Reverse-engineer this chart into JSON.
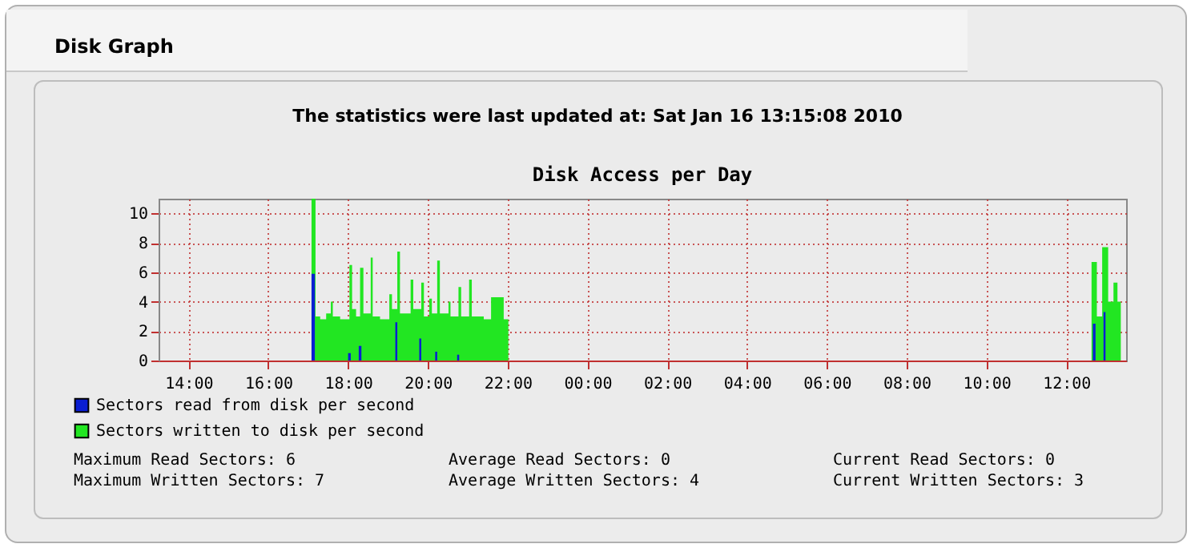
{
  "chart_data": {
    "type": "area",
    "title": "Disk Access per Day",
    "subtitle": "The statistics were last updated at: Sat Jan 16 13:15:08 2010",
    "annotations": [
      "Disk Graph",
      "Maximum Read Sectors: 6",
      "Average Read Sectors: 0",
      "Current Read Sectors: 0",
      "Maximum Written Sectors: 7",
      "Average Written Sectors: 4",
      "Current Written Sectors: 3"
    ],
    "series": [
      {
        "name": "Sectors read from disk per second",
        "color": "#0a1ed2",
        "x": [
          "2010-01-15T13:15",
          "2010-01-15T17:05",
          "2010-01-15T17:10",
          "2010-01-15T18:00",
          "2010-01-15T18:04",
          "2010-01-15T18:16",
          "2010-01-15T18:20",
          "2010-01-15T19:11",
          "2010-01-15T19:14",
          "2010-01-15T19:47",
          "2010-01-15T19:50",
          "2010-01-15T20:11",
          "2010-01-15T20:14",
          "2010-01-15T20:44",
          "2010-01-15T20:47",
          "2010-01-16T12:40",
          "2010-01-16T12:44",
          "2010-01-16T12:56",
          "2010-01-16T12:59",
          "2010-01-16T13:22"
        ],
        "values": [
          0,
          5.9,
          0,
          0.5,
          0,
          1.0,
          0,
          2.6,
          0,
          1.5,
          0,
          0.6,
          0,
          0.4,
          0,
          2.5,
          0,
          3.3,
          0,
          0
        ]
      },
      {
        "name": "Sectors written to disk per second",
        "color": "#22e622",
        "x": [
          "2010-01-15T13:15",
          "2010-01-15T17:05",
          "2010-01-15T17:11",
          "2010-01-15T17:18",
          "2010-01-15T17:27",
          "2010-01-15T17:34",
          "2010-01-15T17:37",
          "2010-01-15T17:48",
          "2010-01-15T18:02",
          "2010-01-15T18:06",
          "2010-01-15T18:12",
          "2010-01-15T18:18",
          "2010-01-15T18:23",
          "2010-01-15T18:34",
          "2010-01-15T18:37",
          "2010-01-15T18:48",
          "2010-01-15T19:02",
          "2010-01-15T19:06",
          "2010-01-15T19:14",
          "2010-01-15T19:18",
          "2010-01-15T19:34",
          "2010-01-15T19:38",
          "2010-01-15T19:50",
          "2010-01-15T19:54",
          "2010-01-15T20:02",
          "2010-01-15T20:06",
          "2010-01-15T20:14",
          "2010-01-15T20:18",
          "2010-01-15T20:31",
          "2010-01-15T20:34",
          "2010-01-15T20:46",
          "2010-01-15T20:50",
          "2010-01-15T21:02",
          "2010-01-15T21:06",
          "2010-01-15T21:24",
          "2010-01-15T21:35",
          "2010-01-15T21:54",
          "2010-01-15T22:01",
          "2010-01-16T12:38",
          "2010-01-16T12:46",
          "2010-01-16T12:54",
          "2010-01-16T13:03",
          "2010-01-16T13:11",
          "2010-01-16T13:17",
          "2010-01-16T13:22"
        ],
        "values": [
          0,
          11,
          3,
          2.8,
          3.2,
          4.0,
          3.0,
          2.8,
          6.5,
          3.5,
          3.0,
          6.3,
          3.2,
          7.0,
          3.0,
          2.8,
          4.5,
          3.5,
          7.4,
          3.2,
          5.5,
          3.5,
          5.3,
          3.0,
          4.2,
          3.2,
          6.8,
          3.2,
          4.0,
          3.0,
          5.0,
          3.0,
          5.5,
          3.0,
          2.8,
          4.3,
          2.8,
          0,
          6.7,
          3.0,
          7.7,
          4.0,
          5.3,
          4.0,
          0
        ]
      }
    ],
    "xlim": [
      "2010-01-15T13:15",
      "2010-01-16T13:30"
    ],
    "xticks": [
      {
        "value": "2010-01-15T14:00",
        "label": "14:00"
      },
      {
        "value": "2010-01-15T16:00",
        "label": "16:00"
      },
      {
        "value": "2010-01-15T18:00",
        "label": "18:00"
      },
      {
        "value": "2010-01-15T20:00",
        "label": "20:00"
      },
      {
        "value": "2010-01-15T22:00",
        "label": "22:00"
      },
      {
        "value": "2010-01-16T00:00",
        "label": "00:00"
      },
      {
        "value": "2010-01-16T02:00",
        "label": "02:00"
      },
      {
        "value": "2010-01-16T04:00",
        "label": "04:00"
      },
      {
        "value": "2010-01-16T06:00",
        "label": "06:00"
      },
      {
        "value": "2010-01-16T08:00",
        "label": "08:00"
      },
      {
        "value": "2010-01-16T10:00",
        "label": "10:00"
      },
      {
        "value": "2010-01-16T12:00",
        "label": "12:00"
      }
    ],
    "ylim": [
      0,
      11
    ],
    "yticks": [
      0,
      2,
      4,
      6,
      8,
      10
    ],
    "grid": true,
    "legend": "bottom left"
  }
}
